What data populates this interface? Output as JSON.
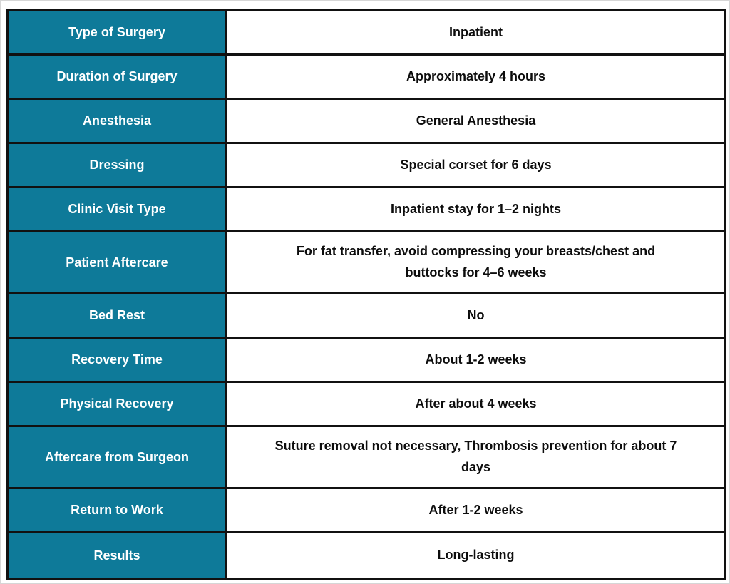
{
  "colors": {
    "label_column_bg": "#0e7a99",
    "border": "#111111",
    "label_text": "#ffffff",
    "value_text": "#0d0d0d"
  },
  "table": {
    "rows": [
      {
        "label": "Type of Surgery",
        "value": "Inpatient"
      },
      {
        "label": "Duration of Surgery",
        "value": "Approximately 4 hours"
      },
      {
        "label": "Anesthesia",
        "value": "General Anesthesia"
      },
      {
        "label": "Dressing",
        "value": "Special corset for 6 days"
      },
      {
        "label": "Clinic Visit Type",
        "value": "Inpatient stay for 1–2 nights"
      },
      {
        "label": "Patient Aftercare",
        "value": "For fat transfer, avoid compressing your breasts/chest and\nbuttocks for 4–6 weeks"
      },
      {
        "label": "Bed Rest",
        "value": "No"
      },
      {
        "label": "Recovery Time",
        "value": "About 1-2 weeks"
      },
      {
        "label": "Physical Recovery",
        "value": "After about 4 weeks"
      },
      {
        "label": "Aftercare from Surgeon",
        "value": "Suture removal not necessary, Thrombosis prevention for about 7\ndays"
      },
      {
        "label": "Return to Work",
        "value": "After 1-2 weeks"
      },
      {
        "label": "Results",
        "value": "Long-lasting"
      }
    ]
  }
}
